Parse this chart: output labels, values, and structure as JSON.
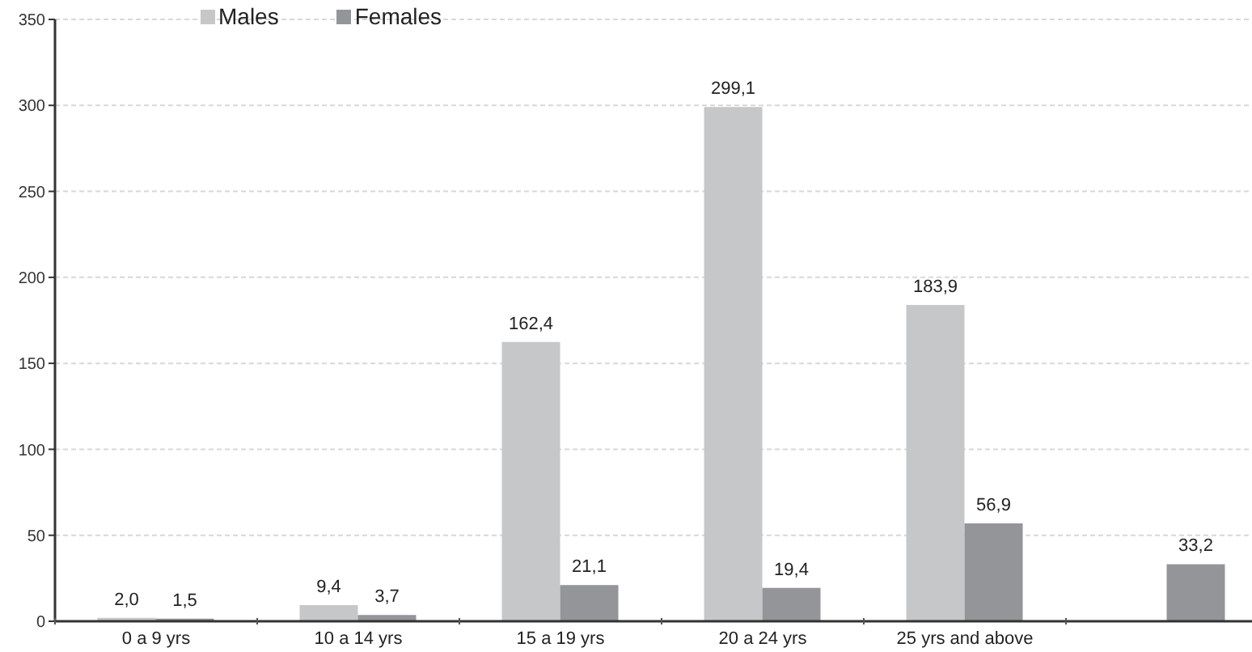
{
  "chart_data": {
    "type": "bar",
    "categories": [
      "0 a 9 yrs",
      "10 a 14 yrs",
      "15 a 19 yrs",
      "20 a 24 yrs",
      "25 yrs and above",
      null
    ],
    "series": [
      {
        "name": "Males",
        "color": "#c6c7c9",
        "values": [
          2.0,
          9.4,
          162.4,
          299.1,
          183.9,
          null
        ],
        "value_labels": [
          "2,0",
          "9,4",
          "162,4",
          "299,1",
          "183,9",
          null
        ]
      },
      {
        "name": "Females",
        "color": "#949598",
        "values": [
          1.5,
          3.7,
          21.1,
          19.4,
          56.9,
          33.2
        ],
        "value_labels": [
          "1,5",
          "3,7",
          "21,1",
          "19,4",
          "56,9",
          "33,2"
        ]
      }
    ],
    "ylim": [
      0,
      350
    ],
    "yticks": [
      0,
      50,
      100,
      150,
      200,
      250,
      300,
      350
    ],
    "grid": "y",
    "legend": "top left"
  }
}
